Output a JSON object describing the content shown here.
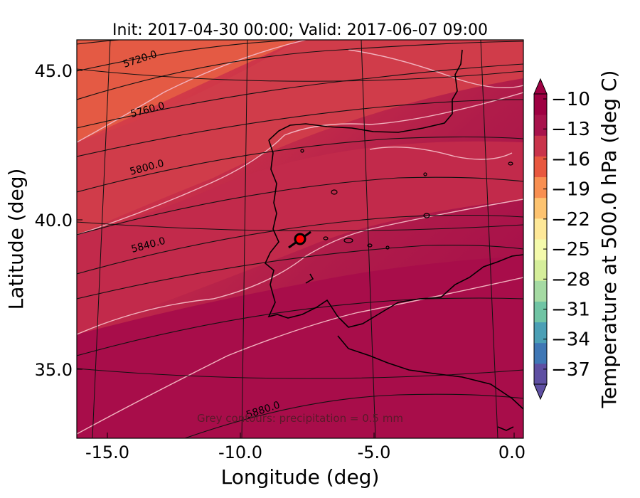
{
  "title": "Init: 2017-04-30 00:00; Valid: 2017-06-07 09:00",
  "x_axis": {
    "label": "Longitude (deg)",
    "ticks": [
      "-15.0",
      "-10.0",
      "-5.0",
      "0.0"
    ],
    "tick_values": [
      -15,
      -10,
      -5,
      0
    ],
    "range": [
      -15.9,
      0.25
    ]
  },
  "y_axis": {
    "label": "Latitude (deg)",
    "ticks": [
      "35.0",
      "40.0",
      "45.0"
    ],
    "tick_values": [
      35,
      40,
      45
    ],
    "range": [
      32.7,
      46.0
    ]
  },
  "colorbar": {
    "label": "Temperature at 500.0 hPa (deg C)",
    "ticks": [
      "−10",
      "−13",
      "−16",
      "−19",
      "−22",
      "−25",
      "−28",
      "−31",
      "−34",
      "−37"
    ],
    "tick_values": [
      -10,
      -13,
      -16,
      -19,
      -22,
      -25,
      -28,
      -31,
      -34,
      -37
    ],
    "range": [
      -38.5,
      -9.5
    ],
    "colors": [
      "#5e4fa2",
      "#3f77b5",
      "#4b9fb5",
      "#70c4a4",
      "#a5daa3",
      "#d5ee9b",
      "#f4faac",
      "#fee898",
      "#fdc370",
      "#f88f51",
      "#e8583f",
      "#c9344b",
      "#a8134c",
      "#9e0142"
    ]
  },
  "contour_labels": [
    "5720.0",
    "5760.0",
    "5800.0",
    "5840.0",
    "5880.0"
  ],
  "annotation": "Grey contours: precipitation = 0.5 mm",
  "marker": {
    "lon": -7.6,
    "lat": 39.3,
    "color": "#ff0000"
  },
  "chart_data": {
    "type": "heatmap",
    "title": "Init: 2017-04-30 00:00; Valid: 2017-06-07 09:00",
    "xlabel": "Longitude (deg)",
    "ylabel": "Latitude (deg)",
    "xlim": [
      -15.9,
      0.25
    ],
    "ylim": [
      32.7,
      46.0
    ],
    "field": "Temperature at 500.0 hPa (deg C)",
    "colorbar_range": [
      -38.5,
      -9.5
    ],
    "geopotential_contours": [
      5720,
      5760,
      5800,
      5840,
      5880
    ],
    "marker": {
      "lon": -7.6,
      "lat": 39.3
    }
  }
}
